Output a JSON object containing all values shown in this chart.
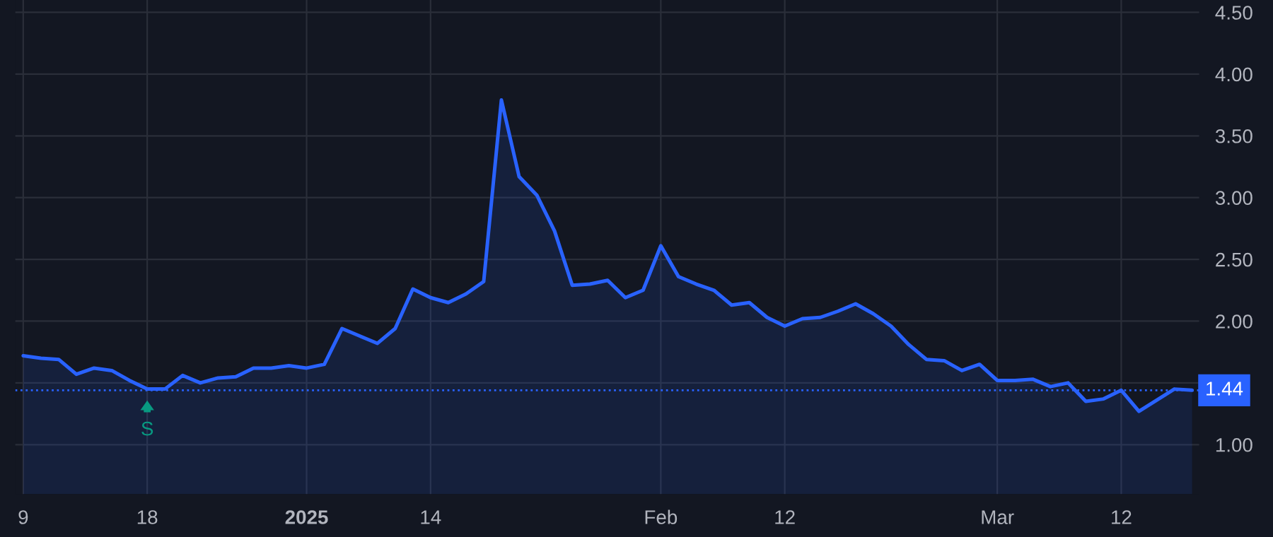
{
  "chart_data": {
    "type": "area",
    "categories": [
      "9",
      null,
      null,
      null,
      null,
      null,
      null,
      "18",
      null,
      null,
      null,
      null,
      null,
      null,
      null,
      null,
      "2025",
      null,
      null,
      null,
      null,
      null,
      null,
      "14",
      null,
      null,
      null,
      null,
      null,
      null,
      null,
      null,
      null,
      null,
      null,
      null,
      "Feb",
      null,
      null,
      null,
      null,
      null,
      null,
      "12",
      null,
      null,
      null,
      null,
      null,
      null,
      null,
      null,
      null,
      null,
      null,
      "Mar",
      null,
      null,
      null,
      null,
      null,
      null,
      "12",
      null,
      null,
      null,
      null
    ],
    "series": [
      {
        "color": "#2962ff",
        "values": [
          1.72,
          1.7,
          1.69,
          1.57,
          1.62,
          1.6,
          1.52,
          1.45,
          1.45,
          1.56,
          1.5,
          1.54,
          1.55,
          1.62,
          1.62,
          1.64,
          1.62,
          1.65,
          1.94,
          1.88,
          1.82,
          1.94,
          2.26,
          2.19,
          2.15,
          2.22,
          2.32,
          3.79,
          3.17,
          3.02,
          2.73,
          2.29,
          2.3,
          2.33,
          2.19,
          2.25,
          2.61,
          2.36,
          2.3,
          2.25,
          2.13,
          2.15,
          2.03,
          1.96,
          2.02,
          2.03,
          2.08,
          2.14,
          2.06,
          1.96,
          1.81,
          1.69,
          1.68,
          1.6,
          1.65,
          1.52,
          1.52,
          1.53,
          1.47,
          1.5,
          1.35,
          1.37,
          1.44,
          1.27,
          1.36,
          1.45,
          1.44
        ]
      }
    ],
    "ylim": [
      0.6,
      4.6
    ],
    "yticks": [
      {
        "value": 1,
        "label": "1.00"
      },
      {
        "value": 1.5,
        "label": null
      },
      {
        "value": 2,
        "label": "2.00"
      },
      {
        "value": 2.5,
        "label": "2.50"
      },
      {
        "value": 3,
        "label": "3.00"
      },
      {
        "value": 3.5,
        "label": "3.50"
      },
      {
        "value": 4,
        "label": "4.00"
      },
      {
        "value": 4.5,
        "label": "4.50"
      }
    ],
    "ref_lines": [
      {
        "axis": "y",
        "value": 1.44,
        "label": "1.44",
        "color": "#2962ff",
        "line_style": "dotted"
      }
    ],
    "annotations": [
      {
        "text": "S",
        "x": "18",
        "y": 1.45
      }
    ],
    "grid": true,
    "legend": false
  }
}
